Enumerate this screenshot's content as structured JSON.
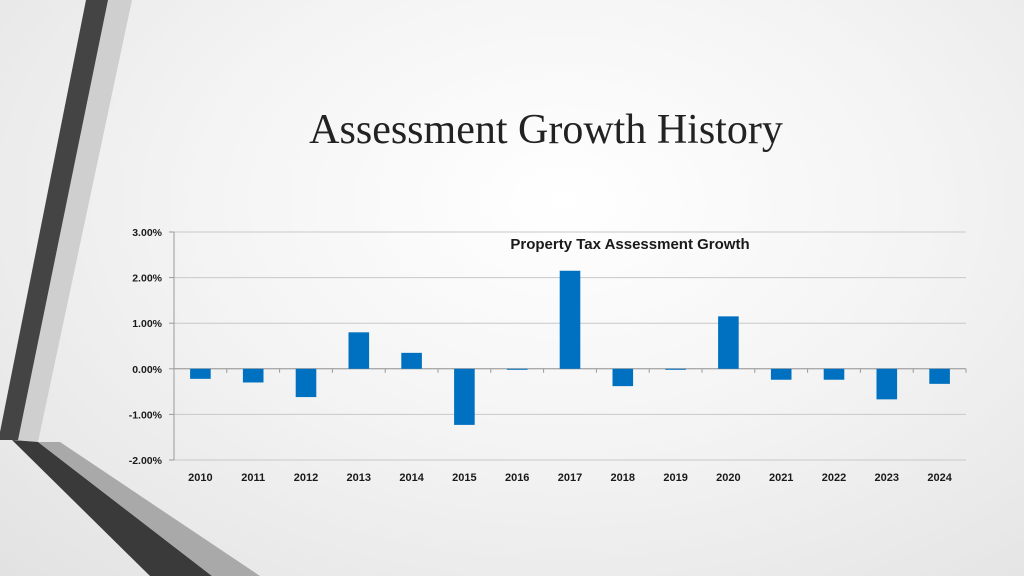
{
  "slide": {
    "title": "Assessment Growth History"
  },
  "chart_data": {
    "type": "bar",
    "title": "Property Tax Assessment  Growth",
    "xlabel": "",
    "ylabel": "",
    "categories": [
      "2010",
      "2011",
      "2012",
      "2013",
      "2014",
      "2015",
      "2016",
      "2017",
      "2018",
      "2019",
      "2020",
      "2021",
      "2022",
      "2023",
      "2024"
    ],
    "values": [
      -0.22,
      -0.3,
      -0.62,
      0.8,
      0.35,
      -1.23,
      -0.02,
      2.15,
      -0.38,
      -0.01,
      1.15,
      -0.24,
      -0.24,
      -0.67,
      -0.33
    ],
    "ylim": [
      -2,
      3
    ],
    "y_ticks": [
      3,
      2,
      1,
      0,
      -1,
      -2
    ],
    "y_tick_labels": [
      "3.00%",
      "2.00%",
      "1.00%",
      "0.00%",
      "-1.00%",
      "-2.00%"
    ],
    "grid": true,
    "legend": "none",
    "bar_color": "#0070C0"
  }
}
